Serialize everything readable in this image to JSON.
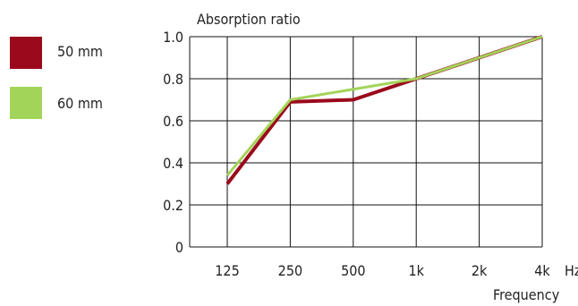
{
  "chart_data": {
    "type": "line",
    "ylabel": "Absorption ratio",
    "xlabel": "Frequency",
    "x_unit": "Hz",
    "categories": [
      "125",
      "250",
      "500",
      "1k",
      "2k",
      "4k"
    ],
    "ylim": [
      0,
      1.0
    ],
    "yticks": [
      "0",
      "0.2",
      "0.4",
      "0.6",
      "0.8",
      "1.0"
    ],
    "grid": true,
    "legend_placement": "left",
    "series": [
      {
        "name": "50 mm",
        "color": "#9b0a1c",
        "values": [
          0.3,
          0.69,
          0.7,
          0.8,
          0.9,
          1.0
        ]
      },
      {
        "name": "60 mm",
        "color": "#a3d45a",
        "values": [
          0.34,
          0.7,
          0.75,
          0.8,
          0.9,
          1.0
        ]
      }
    ]
  }
}
